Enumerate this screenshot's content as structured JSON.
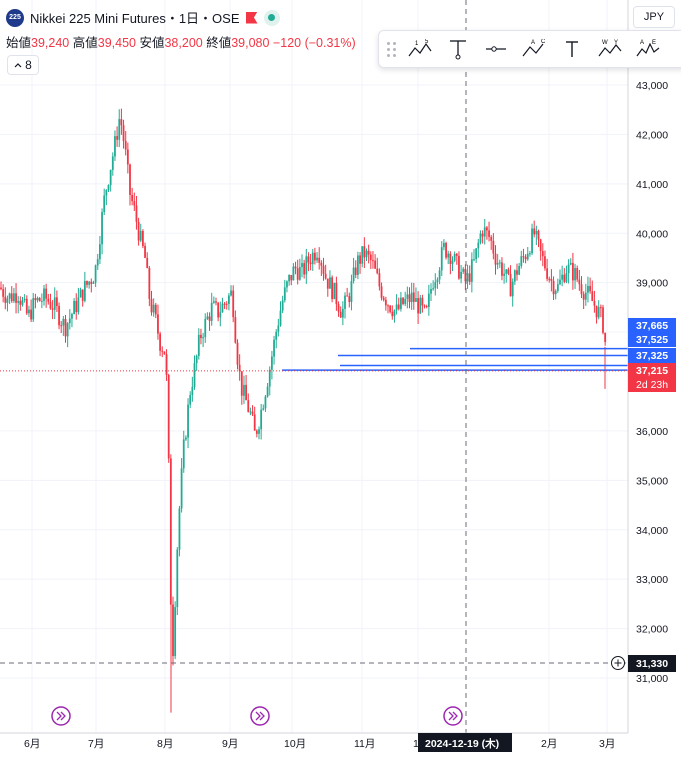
{
  "header": {
    "badge": "225",
    "title": "Nikkei 225 Mini Futures・1日・OSE"
  },
  "ohlc": {
    "open_label": "始値",
    "open": "39,240",
    "high_label": "高値",
    "high": "39,450",
    "low_label": "安値",
    "low": "38,200",
    "close_label": "終値",
    "close": "39,080",
    "change": "−120 (−0.31%)"
  },
  "indicators_button": "8",
  "currency": "JPY",
  "price_axis": {
    "ticks": [
      "43,000",
      "42,000",
      "41,000",
      "40,000",
      "39,000",
      "38,000",
      "36,000",
      "35,000",
      "34,000",
      "33,000",
      "32,000",
      "31,000"
    ],
    "tick_values": [
      43000,
      42000,
      41000,
      40000,
      39000,
      38000,
      36000,
      35000,
      34000,
      33000,
      32000,
      31000
    ],
    "labels": [
      {
        "text": "37,665",
        "value": 37665,
        "color": "#2962ff"
      },
      {
        "text": "37,525",
        "value": 37525,
        "color": "#2962ff"
      },
      {
        "text": "37,325",
        "value": 37325,
        "color": "#2962ff"
      },
      {
        "text": "37,215",
        "value": 37215,
        "color": "#f23645"
      }
    ],
    "countdown": "2d 23h",
    "crosshair_price": "31,330"
  },
  "time_axis": {
    "labels": [
      "6月",
      "7月",
      "8月",
      "9月",
      "10月",
      "11月",
      "12月",
      "2月",
      "3月"
    ],
    "crosshair_date": "2024-12-19 (木)"
  },
  "colors": {
    "up": "#22ab94",
    "down": "#f23645",
    "hline": "#2962ff"
  },
  "icons": [
    "lightning-icon",
    "lightning-icon",
    "lightning-icon"
  ],
  "drawing_tools": [
    "xabcd-pattern-icon",
    "long-position-icon",
    "horizontal-ray-icon",
    "abcd-pattern-icon",
    "text-icon",
    "elliott-wave-icon",
    "head-shoulders-icon"
  ],
  "chart_data": {
    "type": "candlestick",
    "symbol": "Nikkei 225 Mini Futures",
    "ylim": [
      30100,
      43700
    ],
    "price_levels": [
      37665,
      37525,
      37325,
      37215
    ],
    "last_price": 37215,
    "anchors": [
      [
        0,
        38900
      ],
      [
        8,
        38700
      ],
      [
        18,
        38800
      ],
      [
        28,
        38300
      ],
      [
        35,
        38600
      ],
      [
        45,
        38700
      ],
      [
        55,
        38500
      ],
      [
        65,
        38100
      ],
      [
        75,
        38500
      ],
      [
        85,
        38900
      ],
      [
        95,
        39200
      ],
      [
        100,
        40000
      ],
      [
        105,
        40800
      ],
      [
        110,
        41300
      ],
      [
        115,
        41800
      ],
      [
        120,
        42400
      ],
      [
        125,
        41700
      ],
      [
        130,
        40800
      ],
      [
        135,
        40400
      ],
      [
        140,
        39900
      ],
      [
        145,
        39500
      ],
      [
        150,
        38600
      ],
      [
        155,
        38300
      ],
      [
        160,
        37800
      ],
      [
        165,
        37600
      ],
      [
        168,
        36500
      ],
      [
        170,
        33000
      ],
      [
        173,
        31600
      ],
      [
        178,
        34000
      ],
      [
        183,
        35500
      ],
      [
        190,
        36800
      ],
      [
        196,
        37400
      ],
      [
        200,
        37900
      ],
      [
        206,
        38200
      ],
      [
        212,
        38500
      ],
      [
        218,
        38400
      ],
      [
        225,
        38600
      ],
      [
        232,
        38800
      ],
      [
        237,
        37600
      ],
      [
        241,
        36900
      ],
      [
        246,
        36600
      ],
      [
        251,
        36300
      ],
      [
        255,
        35900
      ],
      [
        260,
        36300
      ],
      [
        265,
        36800
      ],
      [
        270,
        37300
      ],
      [
        276,
        38000
      ],
      [
        282,
        38600
      ],
      [
        288,
        39000
      ],
      [
        295,
        39300
      ],
      [
        302,
        39200
      ],
      [
        310,
        39500
      ],
      [
        318,
        39700
      ],
      [
        326,
        39100
      ],
      [
        334,
        38800
      ],
      [
        342,
        38400
      ],
      [
        350,
        38800
      ],
      [
        357,
        39400
      ],
      [
        364,
        39600
      ],
      [
        372,
        39400
      ],
      [
        380,
        38900
      ],
      [
        388,
        38600
      ],
      [
        396,
        38400
      ],
      [
        404,
        38600
      ],
      [
        412,
        38700
      ],
      [
        420,
        38500
      ],
      [
        426,
        38300
      ],
      [
        432,
        39000
      ],
      [
        438,
        39300
      ],
      [
        444,
        39700
      ],
      [
        450,
        39600
      ],
      [
        458,
        39300
      ],
      [
        466,
        39000
      ],
      [
        474,
        39400
      ],
      [
        482,
        40100
      ],
      [
        490,
        39900
      ],
      [
        496,
        39500
      ],
      [
        504,
        39200
      ],
      [
        510,
        38900
      ],
      [
        518,
        39300
      ],
      [
        526,
        39600
      ],
      [
        534,
        40000
      ],
      [
        540,
        39600
      ],
      [
        546,
        39300
      ],
      [
        552,
        39000
      ],
      [
        558,
        38900
      ],
      [
        566,
        39300
      ],
      [
        574,
        39200
      ],
      [
        582,
        38900
      ],
      [
        590,
        38700
      ],
      [
        596,
        38500
      ],
      [
        601,
        38300
      ],
      [
        604,
        38100
      ],
      [
        607,
        37300
      ]
    ]
  }
}
